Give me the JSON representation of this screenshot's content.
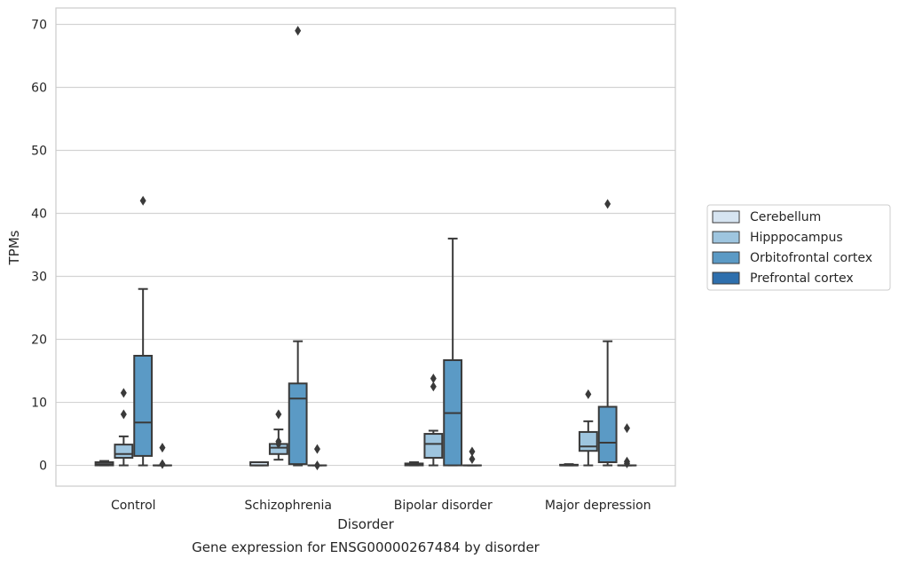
{
  "chart_data": {
    "type": "box",
    "title": "",
    "caption": "Gene expression for ENSG00000267484 by disorder",
    "xlabel": "Disorder",
    "ylabel": "TPMs",
    "ylim": [
      -3.3,
      72.6
    ],
    "yticks": [
      0,
      10,
      20,
      30,
      40,
      50,
      60,
      70
    ],
    "grid": "horizontal",
    "legend_position": "right",
    "categories": [
      "Control",
      "Schizophrenia",
      "Bipolar disorder",
      "Major depression"
    ],
    "series": [
      {
        "name": "Cerebellum",
        "color": "#d6e4f1",
        "boxes": [
          {
            "whislo": 0,
            "q1": 0,
            "med": 0.2,
            "q3": 0.5,
            "whishi": 0.7,
            "fliers": []
          },
          {
            "whislo": 0,
            "q1": 0,
            "med": 0,
            "q3": 0.5,
            "whishi": 0.5,
            "fliers": []
          },
          {
            "whislo": 0,
            "q1": 0,
            "med": 0.1,
            "q3": 0.3,
            "whishi": 0.5,
            "fliers": []
          },
          {
            "whislo": 0,
            "q1": 0,
            "med": 0,
            "q3": 0.1,
            "whishi": 0.2,
            "fliers": []
          }
        ]
      },
      {
        "name": "Hipppocampus",
        "color": "#9ec5df",
        "boxes": [
          {
            "whislo": 0,
            "q1": 1.2,
            "med": 1.8,
            "q3": 3.3,
            "whishi": 4.6,
            "fliers": [
              8.1,
              11.5
            ]
          },
          {
            "whislo": 0.9,
            "q1": 1.8,
            "med": 2.8,
            "q3": 3.4,
            "whishi": 5.7,
            "fliers": [
              3.4,
              3.8,
              8.1
            ]
          },
          {
            "whislo": 0,
            "q1": 1.2,
            "med": 3.4,
            "q3": 5.0,
            "whishi": 5.5,
            "fliers": [
              12.5,
              13.8
            ]
          },
          {
            "whislo": 0,
            "q1": 2.3,
            "med": 3.0,
            "q3": 5.3,
            "whishi": 7.0,
            "fliers": [
              11.3
            ]
          }
        ]
      },
      {
        "name": "Orbitofrontal cortex",
        "color": "#5b9ac5",
        "boxes": [
          {
            "whislo": 0,
            "q1": 1.5,
            "med": 6.8,
            "q3": 17.4,
            "whishi": 28.0,
            "fliers": [
              42.0
            ]
          },
          {
            "whislo": 0,
            "q1": 0.2,
            "med": 10.6,
            "q3": 13.0,
            "whishi": 19.7,
            "fliers": [
              69.0
            ]
          },
          {
            "whislo": 0,
            "q1": 0,
            "med": 8.3,
            "q3": 16.7,
            "whishi": 36.0,
            "fliers": []
          },
          {
            "whislo": 0,
            "q1": 0.5,
            "med": 3.6,
            "q3": 9.3,
            "whishi": 19.7,
            "fliers": [
              41.5
            ]
          }
        ]
      },
      {
        "name": "Prefrontal cortex",
        "color": "#2e6fad",
        "boxes": [
          {
            "whislo": 0,
            "q1": 0,
            "med": 0,
            "q3": 0,
            "whishi": 0,
            "fliers": [
              0.2,
              2.8
            ]
          },
          {
            "whislo": 0,
            "q1": 0,
            "med": 0,
            "q3": 0,
            "whishi": 0,
            "fliers": [
              0,
              2.6
            ]
          },
          {
            "whislo": 0,
            "q1": 0,
            "med": 0,
            "q3": 0,
            "whishi": 0,
            "fliers": [
              1.0,
              2.2
            ]
          },
          {
            "whislo": 0,
            "q1": 0,
            "med": 0,
            "q3": 0,
            "whishi": 0,
            "fliers": [
              0.3,
              0.6,
              5.9
            ]
          }
        ]
      }
    ]
  }
}
